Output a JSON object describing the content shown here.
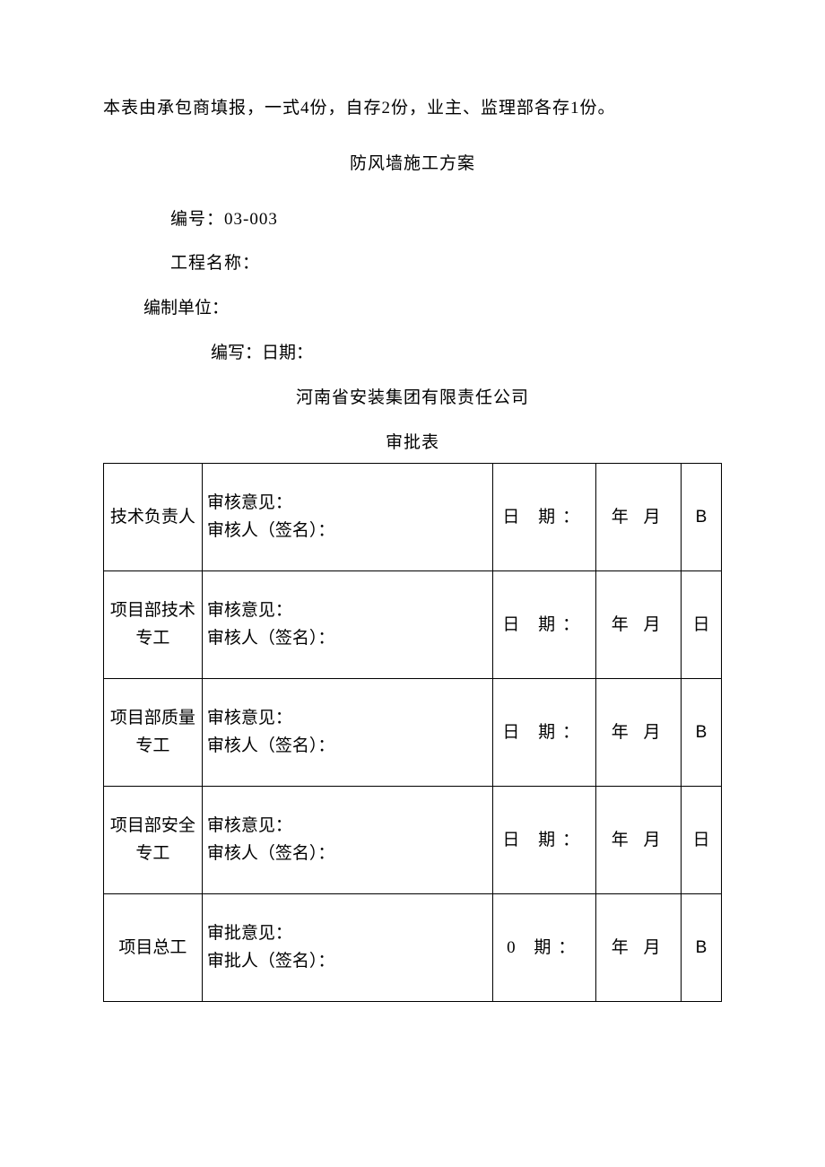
{
  "intro": "本表由承包商填报，一式4份，自存2份，业主、监理部各存1份。",
  "title": "防风墙施工方案",
  "number_label": "编号：03-003",
  "project_label": "工程名称：",
  "unit_label": "编制单位：",
  "write_label": "编写：日期：",
  "company": "河南省安装集团有限责任公司",
  "table_title": "审批表",
  "colors": {
    "text": "#000000",
    "background": "#ffffff",
    "border": "#000000"
  },
  "fontsize": 19,
  "rows": [
    {
      "role": "技术负责人",
      "opinion_line1": "审核意见：",
      "opinion_line2": "审核人（签名）：",
      "date_label": "日 期：",
      "ym_label": "年 月",
      "day": "B"
    },
    {
      "role": "项目部技术专工",
      "opinion_line1": "审核意见：",
      "opinion_line2": "审核人（签名）：",
      "date_label": "日 期：",
      "ym_label": "年 月",
      "day": "日"
    },
    {
      "role": "项目部质量专工",
      "opinion_line1": "审核意见：",
      "opinion_line2": "审核人（签名）：",
      "date_label": "日 期：",
      "ym_label": "年 月",
      "day": "B"
    },
    {
      "role": "项目部安全专工",
      "opinion_line1": "审核意见：",
      "opinion_line2": "审核人（签名）：",
      "date_label": "日 期：",
      "ym_label": "年 月",
      "day": "日"
    },
    {
      "role": "项目总工",
      "opinion_line1": "审批意见：",
      "opinion_line2": "审批人（签名）：",
      "date_label": "0 期：",
      "ym_label": "年 月",
      "day": "B"
    }
  ]
}
